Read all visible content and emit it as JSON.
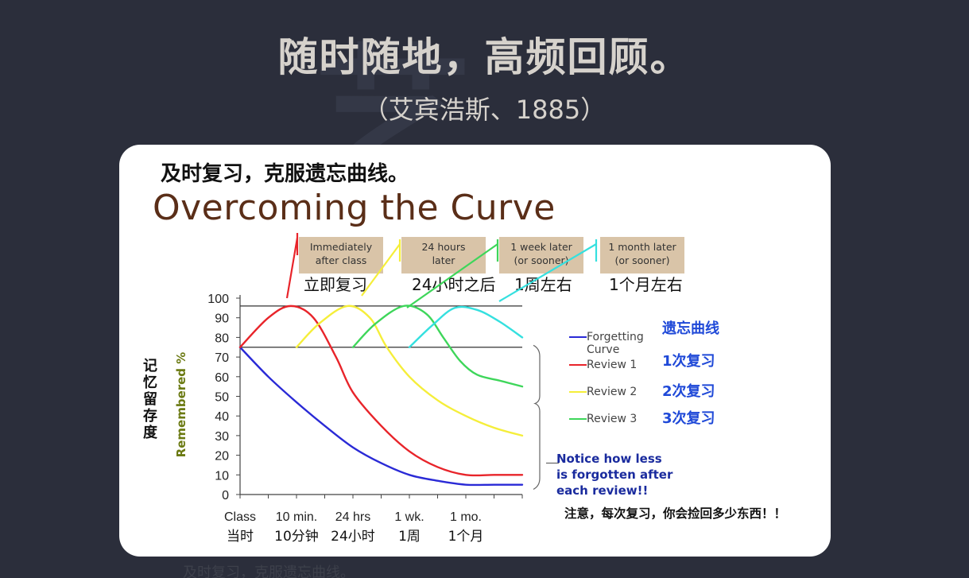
{
  "slide": {
    "bg_glyph": "艺",
    "title": "随时随地，高频回顾。",
    "subtitle": "（艾宾浩斯、1885）"
  },
  "card": {
    "heading": "及时复习，克服遗忘曲线。",
    "title": "Overcoming the Curve",
    "boxes": [
      {
        "line1": "Immediately",
        "line2": "after class",
        "cn": "立即复习"
      },
      {
        "line1": "24 hours",
        "line2": "later",
        "cn": "24小时之后"
      },
      {
        "line1": "1 week later",
        "line2": "(or sooner)",
        "cn": "1周左右"
      },
      {
        "line1": "1 month later",
        "line2": "(or sooner)",
        "cn": "1个月左右"
      }
    ],
    "ylabel_cn": [
      "记",
      "忆",
      "留",
      "存",
      "度"
    ],
    "ylabel_en": "Remembered %",
    "legend": [
      {
        "en": "Forgetting Curve",
        "cn": "遗忘曲线"
      },
      {
        "en": "Review 1",
        "cn": "1次复习"
      },
      {
        "en": "Review 2",
        "cn": "2次复习"
      },
      {
        "en": "Review 3",
        "cn": "3次复习"
      }
    ],
    "note_en": [
      "Notice how less",
      "is forgotten after",
      "each review!!"
    ],
    "note_cn": "注意，每次复习，你会捡回多少东西！！"
  },
  "colors": {
    "forgetting": "#2a2ad6",
    "review1": "#e8242a",
    "review2": "#f5ee3a",
    "review3": "#3ed65a",
    "review4": "#35e0df",
    "title_brown": "#5a2e18",
    "legend_cn_blue": "#1f49d8"
  },
  "chart_data": {
    "type": "line",
    "y_ticks": [
      0,
      10,
      20,
      30,
      40,
      50,
      60,
      70,
      80,
      90,
      100
    ],
    "ylim": [
      0,
      100
    ],
    "x_tick_labels": [
      {
        "en": "Class",
        "cn": "当时"
      },
      {
        "en": "10 min.",
        "cn": "10分钟"
      },
      {
        "en": "24 hrs",
        "cn": "24小时"
      },
      {
        "en": "1 wk.",
        "cn": "1周"
      },
      {
        "en": "1 mo.",
        "cn": "1个月"
      }
    ],
    "x_positions": [
      0,
      1,
      2,
      3,
      4
    ],
    "xlim": [
      0,
      5
    ],
    "reference_lines": [
      75,
      96
    ],
    "grid": false,
    "legend_position": "right",
    "series": [
      {
        "name": "Forgetting Curve",
        "color_key": "forgetting",
        "points": [
          [
            0,
            75
          ],
          [
            0.5,
            60
          ],
          [
            1,
            47
          ],
          [
            1.5,
            35
          ],
          [
            2,
            24
          ],
          [
            2.5,
            16
          ],
          [
            3,
            10
          ],
          [
            3.5,
            7
          ],
          [
            4,
            5
          ],
          [
            4.5,
            5
          ],
          [
            5,
            5
          ]
        ]
      },
      {
        "name": "Review 1",
        "color_key": "review1",
        "points": [
          [
            0,
            75
          ],
          [
            0.5,
            90
          ],
          [
            0.9,
            96
          ],
          [
            1.3,
            90
          ],
          [
            1.7,
            70
          ],
          [
            2,
            52
          ],
          [
            2.5,
            35
          ],
          [
            3,
            22
          ],
          [
            3.5,
            14
          ],
          [
            4,
            10
          ],
          [
            4.5,
            10
          ],
          [
            5,
            10
          ]
        ]
      },
      {
        "name": "Review 2",
        "color_key": "review2",
        "points": [
          [
            1,
            75
          ],
          [
            1.4,
            87
          ],
          [
            1.9,
            96
          ],
          [
            2.3,
            90
          ],
          [
            2.6,
            75
          ],
          [
            3,
            60
          ],
          [
            3.5,
            48
          ],
          [
            4,
            40
          ],
          [
            4.5,
            34
          ],
          [
            5,
            30
          ]
        ]
      },
      {
        "name": "Review 3",
        "color_key": "review3",
        "points": [
          [
            2,
            75
          ],
          [
            2.4,
            87
          ],
          [
            2.9,
            96
          ],
          [
            3.3,
            92
          ],
          [
            3.6,
            80
          ],
          [
            3.9,
            68
          ],
          [
            4.2,
            61
          ],
          [
            4.6,
            58
          ],
          [
            5,
            55
          ]
        ]
      },
      {
        "name": "",
        "color_key": "review4",
        "points": [
          [
            3,
            75
          ],
          [
            3.4,
            86
          ],
          [
            3.8,
            95
          ],
          [
            4.2,
            94
          ],
          [
            4.6,
            88
          ],
          [
            5,
            80
          ]
        ]
      }
    ]
  }
}
